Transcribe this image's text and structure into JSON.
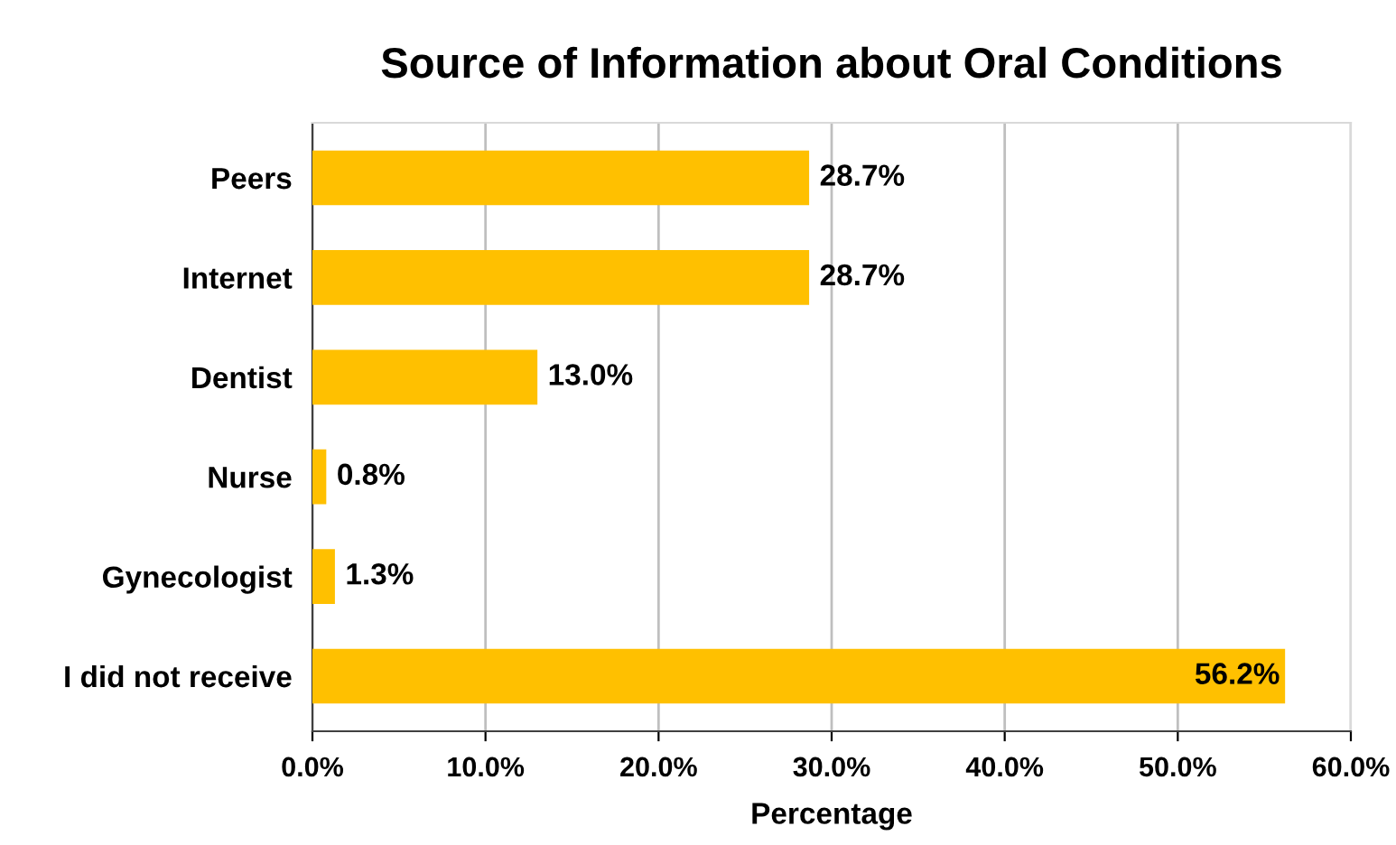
{
  "chart_data": {
    "type": "bar",
    "orientation": "horizontal",
    "title": "Source of Information about Oral Conditions",
    "xlabel": "Percentage",
    "categories": [
      "Peers",
      "Internet",
      "Dentist",
      "Nurse",
      "Gynecologist",
      "I did not receive"
    ],
    "values": [
      28.7,
      28.7,
      13.0,
      0.8,
      1.3,
      56.2
    ],
    "value_labels": [
      "28.7%",
      "28.7%",
      "13.0%",
      "0.8%",
      "1.3%",
      "56.2%"
    ],
    "color": "#ffc000",
    "xlim": [
      0,
      60
    ],
    "xticks": [
      {
        "value": 0,
        "label": "0.0%"
      },
      {
        "value": 10,
        "label": "10.0%"
      },
      {
        "value": 20,
        "label": "20.0%"
      },
      {
        "value": 30,
        "label": "30.0%"
      },
      {
        "value": 40,
        "label": "40.0%"
      },
      {
        "value": 50,
        "label": "50.0%"
      },
      {
        "value": 60,
        "label": "60.0%"
      }
    ],
    "grid": "x",
    "legend": false
  }
}
